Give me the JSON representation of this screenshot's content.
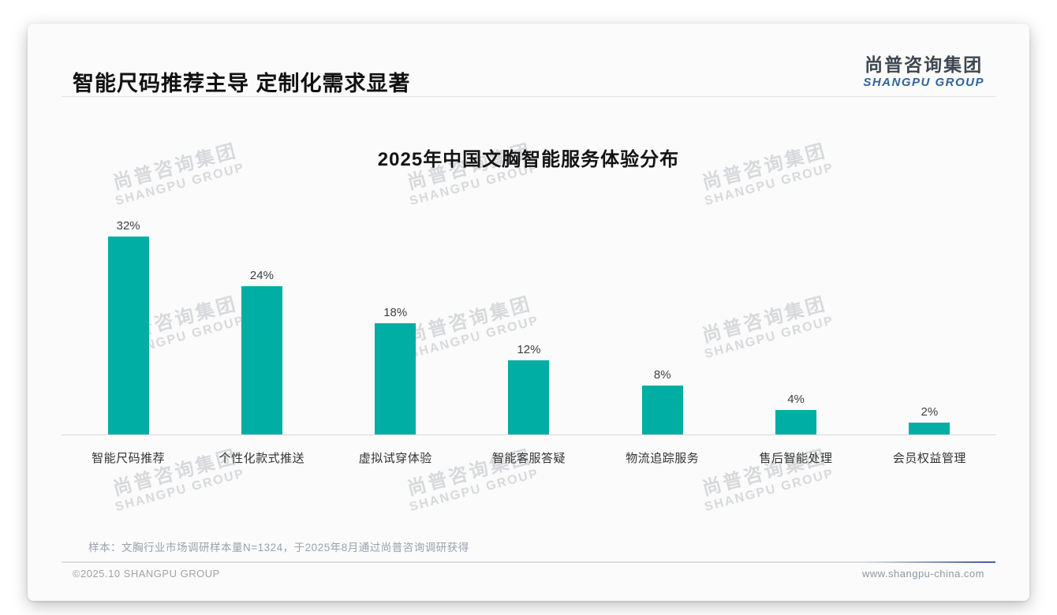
{
  "page": {
    "title": "智能尺码推荐主导 定制化需求显著",
    "logo": {
      "cn": "尚普咨询集团",
      "en": "SHANGPU GROUP"
    },
    "watermark": {
      "cn": "尚普咨询集团",
      "en": "SHANGPU GROUP"
    },
    "note": "样本：文胸行业市场调研样本量N=1324，于2025年8月通过尚普咨询调研获得",
    "footer_left": "©2025.10 SHANGPU GROUP",
    "footer_right": "www.shangpu-china.com"
  },
  "colors": {
    "bar": "#00aea4",
    "logo_en_blue": "#2f639e",
    "footer_accent_blue": "#47639a",
    "watermark_gray": "#9ea3aa"
  },
  "chart_data": {
    "type": "bar",
    "title": "2025年中国文胸智能服务体验分布",
    "categories": [
      "智能尺码推荐",
      "个性化款式推送",
      "虚拟试穿体验",
      "智能客服答疑",
      "物流追踪服务",
      "售后智能处理",
      "会员权益管理"
    ],
    "values": [
      32,
      24,
      18,
      12,
      8,
      4,
      2
    ],
    "value_labels": [
      "32%",
      "24%",
      "18%",
      "12%",
      "8%",
      "4%",
      "2%"
    ],
    "unit": "%",
    "ylim": [
      0,
      32
    ],
    "bar_color": "#00aea4",
    "grid": false,
    "legend": "none"
  }
}
